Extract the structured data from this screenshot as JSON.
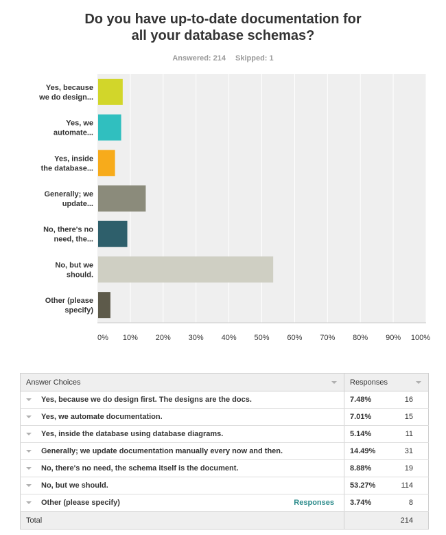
{
  "title_line1": "Do you have up-to-date documentation for",
  "title_line2": "all your database schemas?",
  "answered": "Answered: 214",
  "skipped": "Skipped: 1",
  "chart_data": {
    "type": "bar",
    "orientation": "horizontal",
    "categories": [
      [
        "Yes, because",
        "we do design..."
      ],
      [
        "Yes, we",
        "automate..."
      ],
      [
        "Yes, inside",
        "the database..."
      ],
      [
        "Generally; we",
        "update..."
      ],
      [
        "No, there's no",
        "need, the..."
      ],
      [
        "No, but we",
        "should."
      ],
      [
        "Other (please",
        "specify)"
      ]
    ],
    "values": [
      7.48,
      7.01,
      5.14,
      14.49,
      8.88,
      53.27,
      3.74
    ],
    "colors": [
      "#d2d62a",
      "#30bfbf",
      "#f7ab1b",
      "#8b8b7b",
      "#2e5f6b",
      "#cfcfc3",
      "#5d5a4a"
    ],
    "xlim": [
      0,
      100
    ],
    "xticks": [
      "0%",
      "10%",
      "20%",
      "30%",
      "40%",
      "50%",
      "60%",
      "70%",
      "80%",
      "90%",
      "100%"
    ],
    "grid": true,
    "plot_background": "#efefef"
  },
  "table": {
    "header_choices": "Answer Choices",
    "header_responses": "Responses",
    "rows": [
      {
        "choice": "Yes, because we do design first. The designs are the docs.",
        "pct": "7.48%",
        "count": "16"
      },
      {
        "choice": "Yes, we automate documentation.",
        "pct": "7.01%",
        "count": "15"
      },
      {
        "choice": "Yes, inside the database using database diagrams.",
        "pct": "5.14%",
        "count": "11"
      },
      {
        "choice": "Generally; we update documentation manually every now and then.",
        "pct": "14.49%",
        "count": "31"
      },
      {
        "choice": "No, there's no need, the schema itself is the document.",
        "pct": "8.88%",
        "count": "19"
      },
      {
        "choice": "No, but we should.",
        "pct": "53.27%",
        "count": "114"
      },
      {
        "choice": "Other (please specify)",
        "pct": "3.74%",
        "count": "8",
        "link": "Responses"
      }
    ],
    "total_label": "Total",
    "total_value": "214"
  }
}
